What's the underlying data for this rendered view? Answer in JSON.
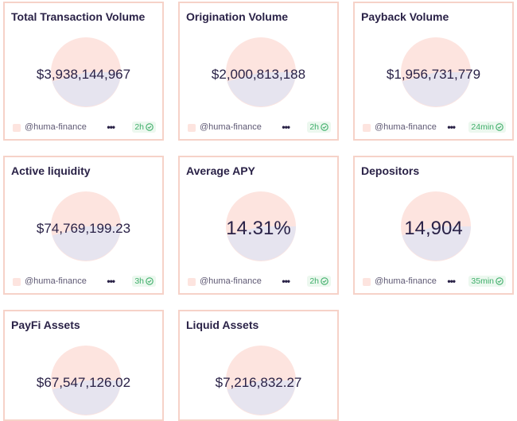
{
  "colors": {
    "card_border": "#f6d2c8",
    "pie_top": "#fde4df",
    "pie_bottom": "#e6e4ef",
    "text": "#2a2247",
    "badge_green": "#3fae6a"
  },
  "cards": [
    {
      "title": "Total Transaction Volume",
      "value": "$3,938,144,967",
      "handle": "@huma-finance",
      "more_icon": "ellipsis-icon",
      "age": "2h",
      "status_icon": "check-circle-icon"
    },
    {
      "title": "Origination Volume",
      "value": "$2,000,813,188",
      "handle": "@huma-finance",
      "more_icon": "ellipsis-icon",
      "age": "2h",
      "status_icon": "check-circle-icon"
    },
    {
      "title": "Payback Volume",
      "value": "$1,956,731,779",
      "handle": "@huma-finance",
      "more_icon": "ellipsis-icon",
      "age": "24min",
      "status_icon": "check-circle-icon"
    },
    {
      "title": "Active liquidity",
      "value": "$74,769,199.23",
      "handle": "@huma-finance",
      "more_icon": "ellipsis-icon",
      "age": "3h",
      "status_icon": "check-circle-icon"
    },
    {
      "title": "Average APY",
      "value": "14.31%",
      "handle": "@huma-finance",
      "more_icon": "ellipsis-icon",
      "age": "2h",
      "status_icon": "check-circle-icon"
    },
    {
      "title": "Depositors",
      "value": "14,904",
      "handle": "@huma-finance",
      "more_icon": "ellipsis-icon",
      "age": "35min",
      "status_icon": "check-circle-icon"
    },
    {
      "title": "PayFi Assets",
      "value": "$67,547,126.02"
    },
    {
      "title": "Liquid Assets",
      "value": "$7,216,832.27"
    }
  ]
}
